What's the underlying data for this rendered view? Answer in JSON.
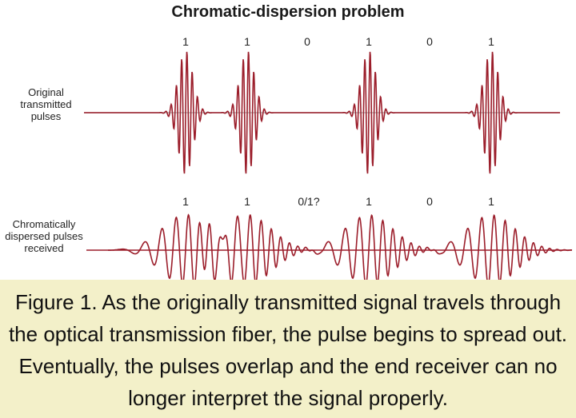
{
  "title": "Chromatic-dispersion problem",
  "top_row": {
    "label": "Original transmitted pulses",
    "bits": [
      "1",
      "1",
      "0",
      "1",
      "0",
      "1"
    ]
  },
  "bottom_row": {
    "label": "Chromatically dispersed pulses received",
    "bits": [
      "1",
      "1",
      "0/1?",
      "1",
      "0",
      "1"
    ]
  },
  "caption": "Figure 1. As the originally transmitted signal travels through the optical transmission fiber, the pulse begins to spread out. Eventually, the pulses overlap and the end receiver can no longer interpret the signal properly.",
  "colors": {
    "pulse": "#9b1d2a",
    "axis": "#bbbbbb",
    "caption_bg": "#f3f0c9"
  }
}
